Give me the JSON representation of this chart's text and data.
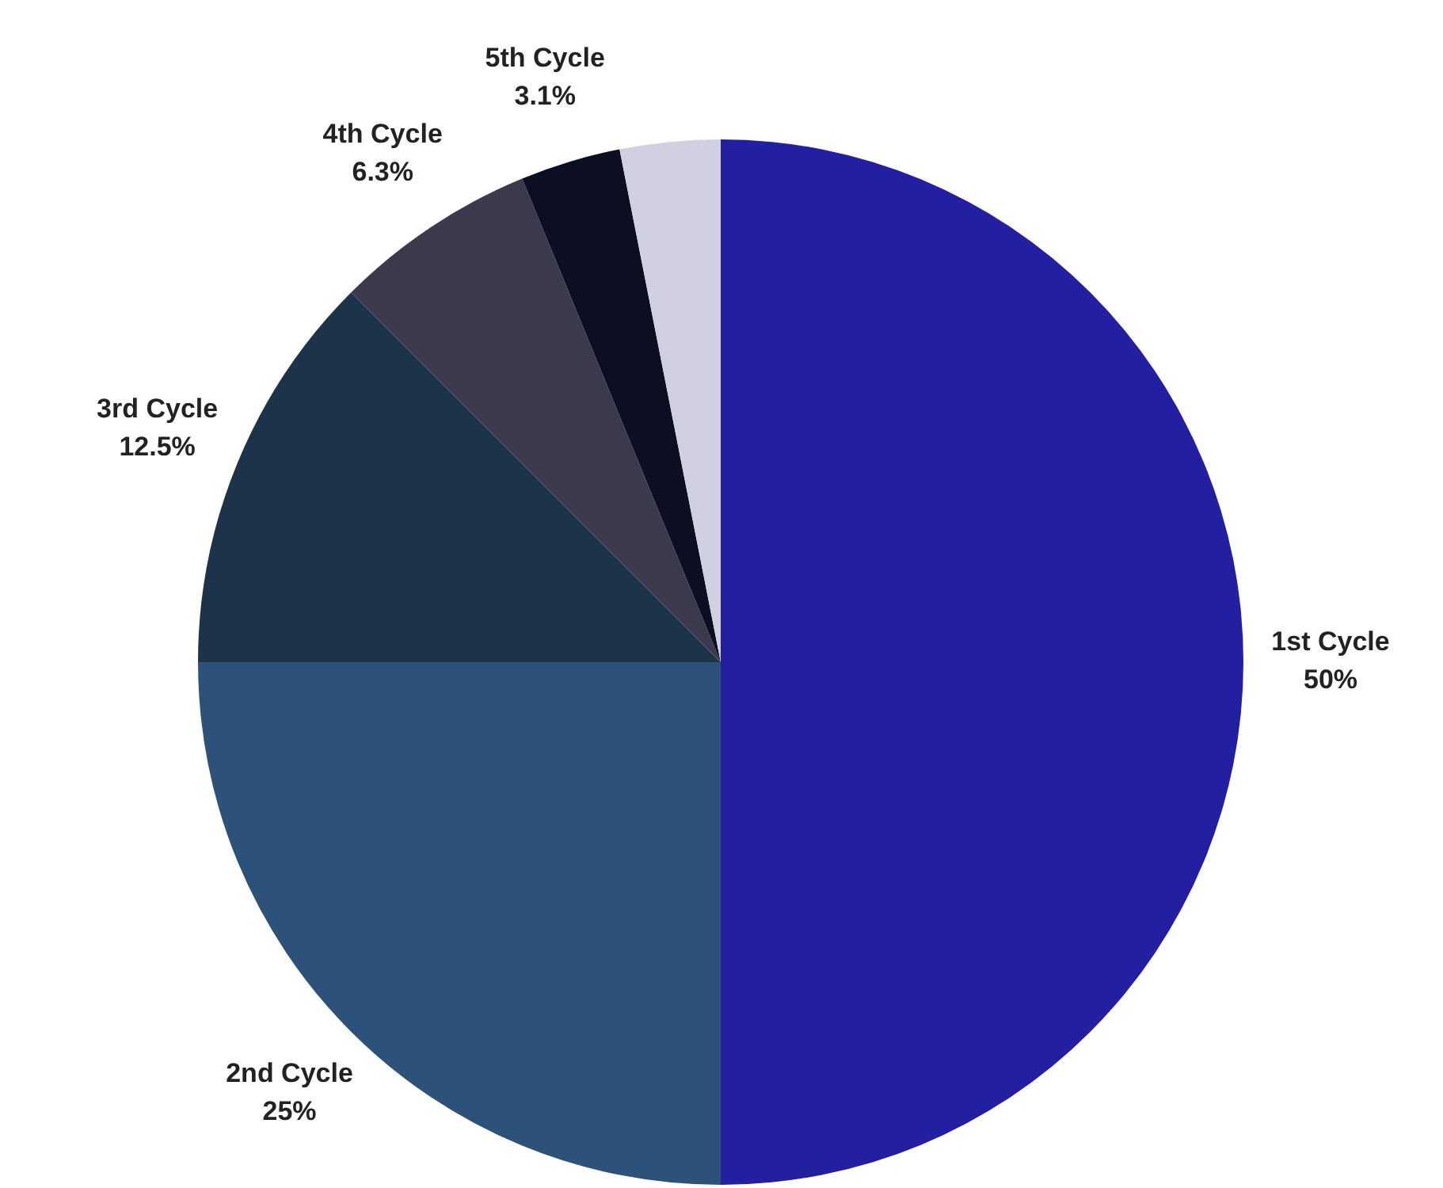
{
  "chart_data": {
    "type": "pie",
    "categories": [
      "1st Cycle",
      "2nd Cycle",
      "3rd Cycle",
      "4th Cycle",
      "5th Cycle",
      null
    ],
    "values": [
      50,
      25,
      12.5,
      6.3,
      3.1,
      3.1
    ],
    "colors": [
      "#2220a0",
      "#2c527a",
      "#1c3349",
      "#3b3a4c",
      "#0c0f22",
      "#d0d0e0"
    ],
    "value_labels": [
      "50%",
      "25%",
      "12.5%",
      "6.3%",
      "3.1%",
      null
    ],
    "legend": false
  }
}
